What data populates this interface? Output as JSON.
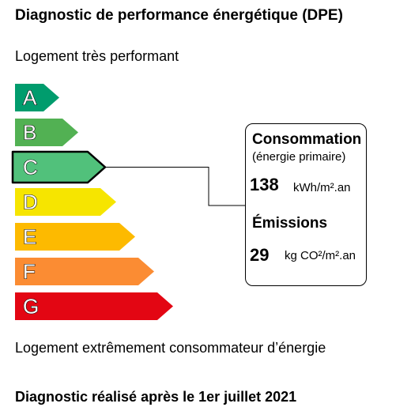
{
  "header": {
    "title": "Diagnostic de performance énergétique (DPE)"
  },
  "labels": {
    "top": "Logement très performant",
    "bottom": "Logement extrêmement consommateur d’énergie",
    "footer": "Diagnostic réalisé après le 1er juillet 2021"
  },
  "scale": {
    "current_class": "C",
    "classes": [
      {
        "letter": "A",
        "color": "#009c6d"
      },
      {
        "letter": "B",
        "color": "#52b153"
      },
      {
        "letter": "C",
        "color": "#51c17b"
      },
      {
        "letter": "D",
        "color": "#f6e500"
      },
      {
        "letter": "E",
        "color": "#fdba00"
      },
      {
        "letter": "F",
        "color": "#fb8c33"
      },
      {
        "letter": "G",
        "color": "#e30613"
      }
    ]
  },
  "panel": {
    "consumption_title": "Consommation",
    "consumption_subtitle": "(énergie primaire)",
    "consumption_value": "138",
    "consumption_unit": "kWh/m².an",
    "emissions_title": "Émissions",
    "emissions_value": "29",
    "emissions_unit": "kg CO²/m².an"
  }
}
